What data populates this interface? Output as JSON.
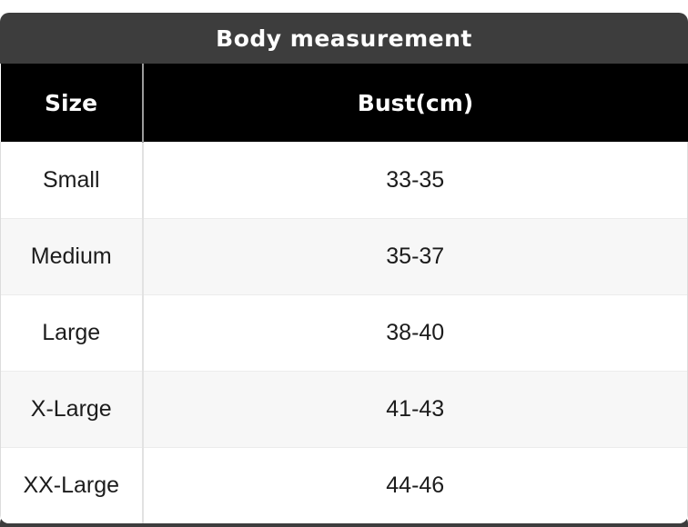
{
  "chart_data": {
    "type": "table",
    "title": "Body measurement",
    "columns": [
      "Size",
      "Bust(cm)"
    ],
    "rows": [
      [
        "Small",
        "33-35"
      ],
      [
        "Medium",
        "35-37"
      ],
      [
        "Large",
        "38-40"
      ],
      [
        "X-Large",
        "41-43"
      ],
      [
        "XX-Large",
        "44-46"
      ]
    ]
  },
  "title_bar": {
    "label": "Body measurement"
  },
  "table": {
    "header": {
      "size": "Size",
      "bust": "Bust(cm)"
    },
    "rows": [
      {
        "size": "Small",
        "bust": "33-35"
      },
      {
        "size": "Medium",
        "bust": "35-37"
      },
      {
        "size": "Large",
        "bust": "38-40"
      },
      {
        "size": "X-Large",
        "bust": "41-43"
      },
      {
        "size": "XX-Large",
        "bust": "44-46"
      }
    ]
  },
  "colors": {
    "title_bar_bg": "#3d3d3d",
    "header_bg": "#000000",
    "header_text": "#ffffff",
    "alt_row_bg": "#f7f7f7",
    "body_text": "#1c1c1c",
    "header_divider": "#9b9b9b",
    "body_divider": "#e2e2e2"
  }
}
